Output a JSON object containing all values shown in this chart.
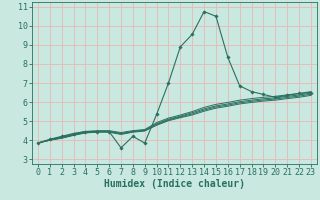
{
  "bg_color": "#c8e8e0",
  "grid_color": "#e8b8b8",
  "line_color": "#2a7060",
  "xlabel": "Humidex (Indice chaleur)",
  "xlabel_fontsize": 7,
  "tick_fontsize": 6,
  "xlim": [
    -0.5,
    23.5
  ],
  "ylim": [
    2.75,
    11.25
  ],
  "yticks": [
    3,
    4,
    5,
    6,
    7,
    8,
    9,
    10,
    11
  ],
  "xticks": [
    0,
    1,
    2,
    3,
    4,
    5,
    6,
    7,
    8,
    9,
    10,
    11,
    12,
    13,
    14,
    15,
    16,
    17,
    18,
    19,
    20,
    21,
    22,
    23
  ],
  "main_curve": [
    3.85,
    4.05,
    4.2,
    4.35,
    4.45,
    4.45,
    4.45,
    3.6,
    4.2,
    3.85,
    5.35,
    7.0,
    8.9,
    9.55,
    10.75,
    10.5,
    8.35,
    6.85,
    6.55,
    6.4,
    6.25,
    6.35,
    6.45,
    6.5
  ],
  "band_curves": [
    [
      3.85,
      4.0,
      4.1,
      4.25,
      4.38,
      4.42,
      4.42,
      4.3,
      4.42,
      4.48,
      4.78,
      5.02,
      5.18,
      5.32,
      5.52,
      5.68,
      5.78,
      5.9,
      5.98,
      6.05,
      6.1,
      6.18,
      6.25,
      6.35
    ],
    [
      3.85,
      4.0,
      4.12,
      4.27,
      4.4,
      4.44,
      4.44,
      4.33,
      4.44,
      4.5,
      4.82,
      5.06,
      5.22,
      5.38,
      5.58,
      5.74,
      5.84,
      5.96,
      6.04,
      6.11,
      6.16,
      6.24,
      6.31,
      6.41
    ],
    [
      3.85,
      4.0,
      4.14,
      4.3,
      4.42,
      4.46,
      4.46,
      4.36,
      4.46,
      4.52,
      4.86,
      5.1,
      5.26,
      5.44,
      5.64,
      5.8,
      5.9,
      6.02,
      6.1,
      6.17,
      6.22,
      6.3,
      6.37,
      6.47
    ],
    [
      3.85,
      4.02,
      4.18,
      4.34,
      4.46,
      4.5,
      4.5,
      4.4,
      4.5,
      4.56,
      4.92,
      5.16,
      5.32,
      5.5,
      5.72,
      5.88,
      5.98,
      6.1,
      6.18,
      6.25,
      6.3,
      6.38,
      6.45,
      6.55
    ]
  ]
}
